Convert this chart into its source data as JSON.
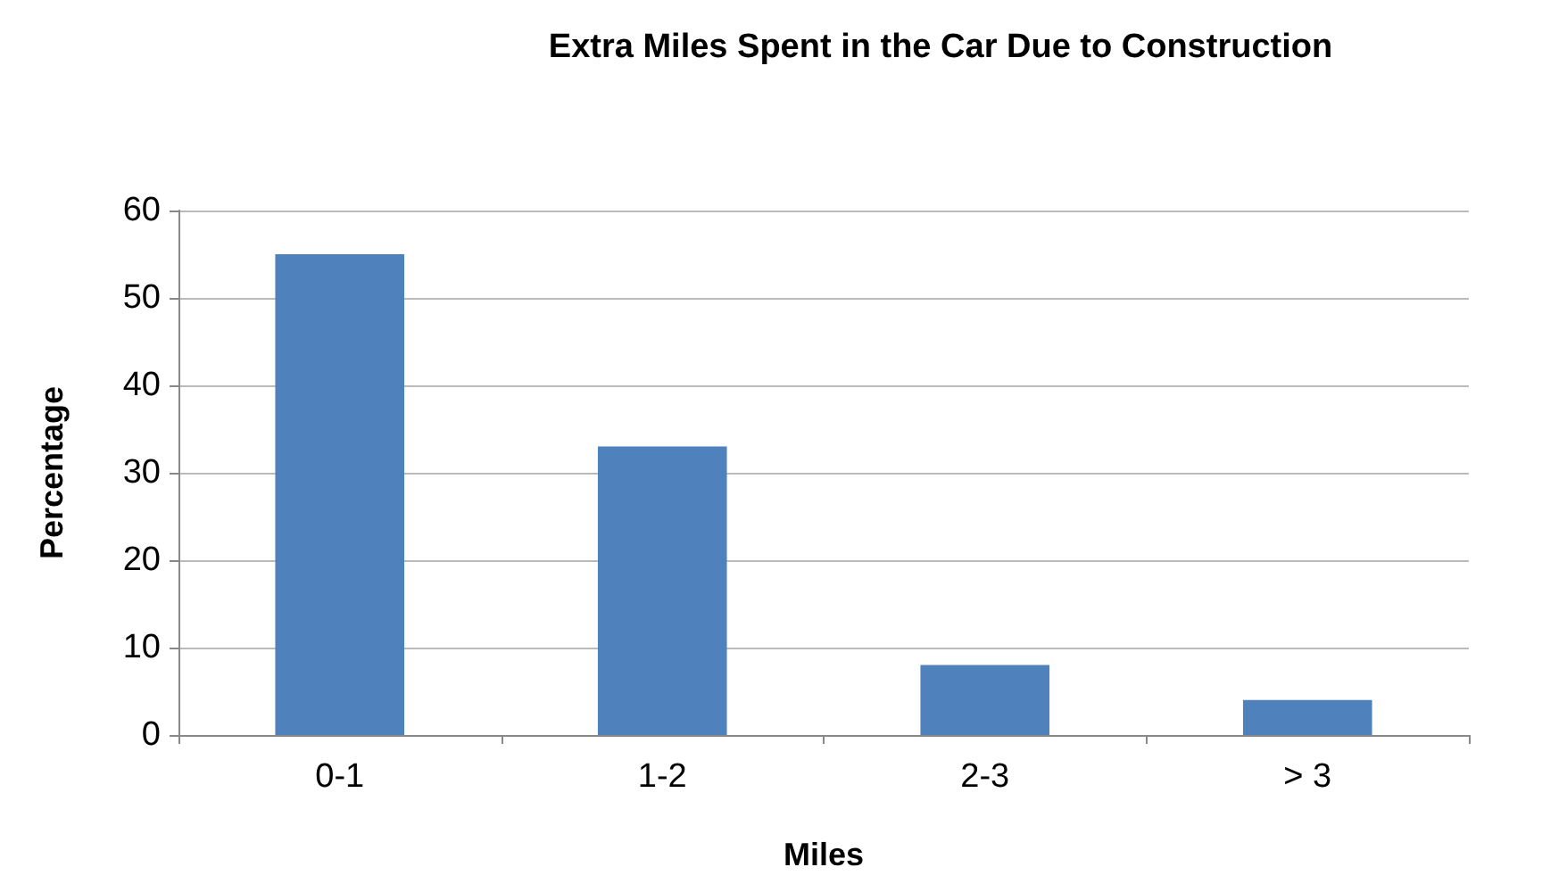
{
  "chart_data": {
    "type": "bar",
    "title": "Extra Miles Spent in the Car Due to Construction",
    "xlabel": "Miles",
    "ylabel": "Percentage",
    "categories": [
      "0-1",
      "1-2",
      "2-3",
      "> 3"
    ],
    "values": [
      55,
      33,
      8,
      4
    ],
    "color": "#4f81bd",
    "ylim": [
      0,
      60
    ],
    "yticks": [
      0,
      10,
      20,
      30,
      40,
      50,
      60
    ],
    "grid": "y"
  }
}
